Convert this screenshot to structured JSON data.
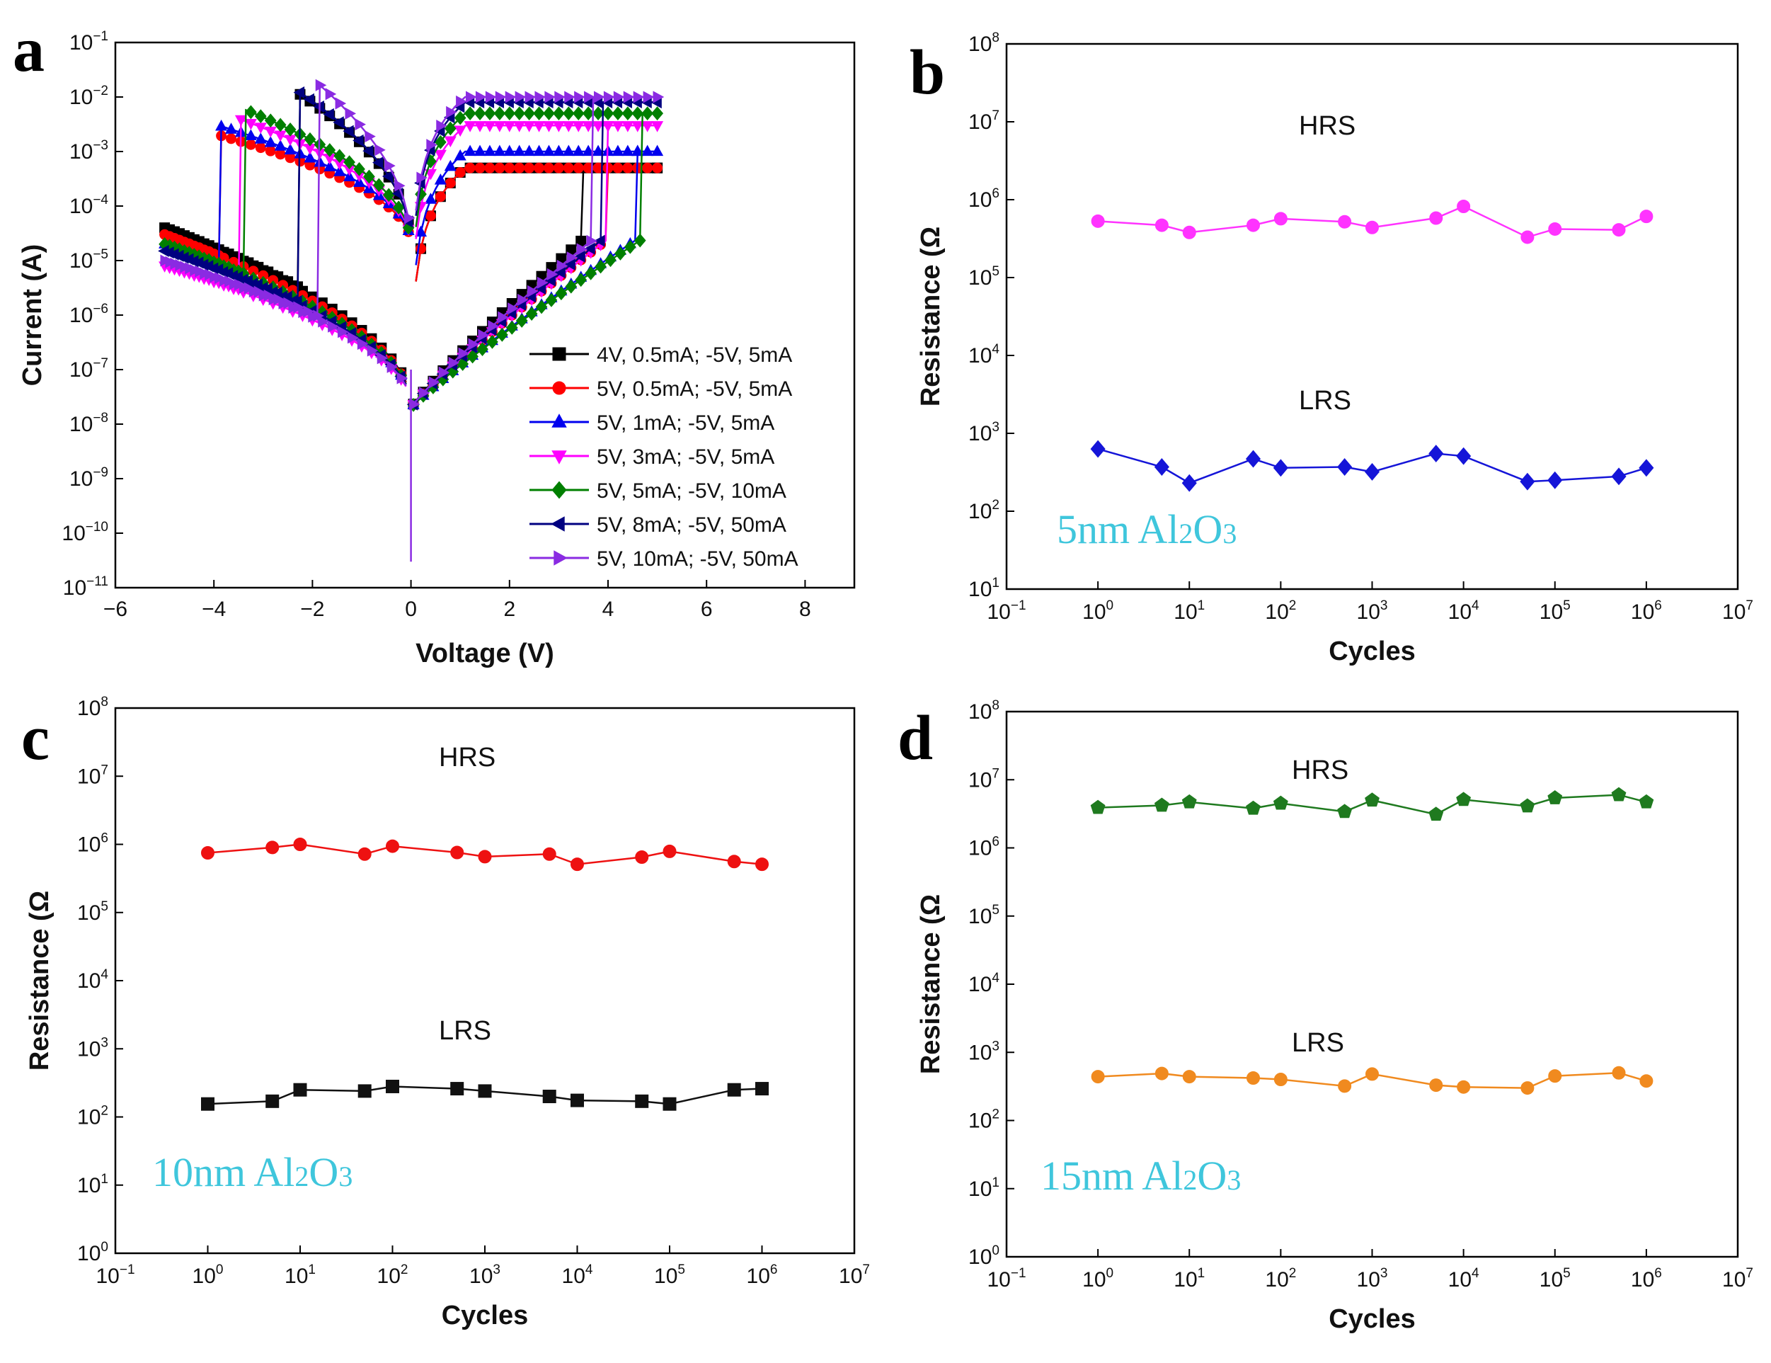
{
  "chart_data": [
    {
      "panel": "a",
      "type": "line",
      "xlabel": "Voltage (V)",
      "ylabel": "Current (A)",
      "xlim": [
        -6,
        9
      ],
      "xticks": [
        -6,
        -4,
        -2,
        0,
        2,
        4,
        6,
        8
      ],
      "ylim_exp": [
        -11,
        -1
      ],
      "yscale": "log",
      "legend_position": "bottom-right",
      "series": [
        {
          "name": "4V, 0.5mA; -5V, 5mA",
          "marker": "square",
          "color": "#000000",
          "set_v": 3.5,
          "comp": 0.0005,
          "reset_v": -2.3,
          "i_on": 0.012,
          "i_neg0": 4e-05
        },
        {
          "name": "5V, 0.5mA; -5V, 5mA",
          "marker": "circle",
          "color": "#ff0000",
          "set_v": 4.0,
          "comp": 0.0005,
          "reset_v": -3.9,
          "i_on": 0.002,
          "i_neg0": 3e-05
        },
        {
          "name": "5V, 1mA; -5V, 5mA",
          "marker": "triangle-up",
          "color": "#0000ee",
          "set_v": 4.6,
          "comp": 0.001,
          "reset_v": -3.9,
          "i_on": 0.003,
          "i_neg0": 2e-05
        },
        {
          "name": "5V, 3mA; -5V, 5mA",
          "marker": "triangle-down",
          "color": "#ff00ff",
          "set_v": 4.0,
          "comp": 0.003,
          "reset_v": -3.5,
          "i_on": 0.004,
          "i_neg0": 8e-06
        },
        {
          "name": "5V, 5mA; -5V, 10mA",
          "marker": "diamond",
          "color": "#007f00",
          "set_v": 4.7,
          "comp": 0.005,
          "reset_v": -3.4,
          "i_on": 0.006,
          "i_neg0": 2e-05
        },
        {
          "name": "5V, 8mA; -5V, 50mA",
          "marker": "triangle-left",
          "color": "#000080",
          "set_v": 3.9,
          "comp": 0.008,
          "reset_v": -2.3,
          "i_on": 0.013,
          "i_neg0": 1.5e-05
        },
        {
          "name": "5V, 10mA; -5V, 50mA",
          "marker": "triangle-right",
          "color": "#8a2be2",
          "set_v": 3.7,
          "comp": 0.01,
          "reset_v": -1.9,
          "i_on": 0.018,
          "i_neg0": 1e-05
        }
      ]
    },
    {
      "panel": "b",
      "type": "scatter",
      "label": "5nm Al2O3",
      "label_main": "5nm Al",
      "label_sub1": "2",
      "label_mid": "O",
      "label_sub2": "3",
      "xlabel": "Cycles",
      "ylabel": "Resistance (Ω",
      "xscale": "log",
      "xlim_exp": [
        -1,
        7
      ],
      "yscale": "log",
      "ylim_exp": [
        1,
        8
      ],
      "x": [
        1,
        5,
        10,
        50,
        100,
        500,
        1000,
        5000,
        10000,
        50000,
        100000,
        500000,
        1000000
      ],
      "series": [
        {
          "name": "HRS",
          "color": "#ff33ff",
          "marker": "circle",
          "values": [
            530000,
            470000,
            380000,
            470000,
            570000,
            520000,
            440000,
            580000,
            820000,
            330000,
            420000,
            410000,
            610000
          ]
        },
        {
          "name": "LRS",
          "color": "#1515d8",
          "marker": "diamond",
          "values": [
            630,
            370,
            230,
            470,
            360,
            370,
            320,
            550,
            510,
            240,
            250,
            280,
            360
          ]
        }
      ]
    },
    {
      "panel": "c",
      "type": "scatter",
      "label": "10nm Al2O3",
      "label_main": "10nm Al",
      "label_sub1": "2",
      "label_mid": "O",
      "label_sub2": "3",
      "xlabel": "Cycles",
      "ylabel": "Resistance (Ω",
      "xscale": "log",
      "xlim_exp": [
        -1,
        7
      ],
      "yscale": "log",
      "ylim_exp": [
        0,
        8
      ],
      "x": [
        1,
        5,
        10,
        50,
        100,
        500,
        1000,
        5000,
        10000,
        50000,
        100000,
        500000,
        1000000
      ],
      "series": [
        {
          "name": "HRS",
          "color": "#ee1111",
          "marker": "circle",
          "values": [
            750000,
            900000,
            1000000,
            720000,
            940000,
            760000,
            660000,
            720000,
            510000,
            650000,
            790000,
            560000,
            510000
          ]
        },
        {
          "name": "LRS",
          "color": "#111111",
          "marker": "square",
          "values": [
            155,
            170,
            250,
            240,
            280,
            260,
            240,
            200,
            175,
            170,
            155,
            250,
            260
          ]
        }
      ]
    },
    {
      "panel": "d",
      "type": "scatter",
      "label": "15nm Al2O3",
      "label_main": "15nm Al",
      "label_sub1": "2",
      "label_mid": "O",
      "label_sub2": "3",
      "xlabel": "Cycles",
      "ylabel": "Resistance (Ω",
      "xscale": "log",
      "xlim_exp": [
        -1,
        7
      ],
      "yscale": "log",
      "ylim_exp": [
        0,
        8
      ],
      "x": [
        1,
        5,
        10,
        50,
        100,
        500,
        1000,
        5000,
        10000,
        50000,
        100000,
        500000,
        1000000
      ],
      "series": [
        {
          "name": "HRS",
          "color": "#1f7a1f",
          "marker": "pentagon",
          "values": [
            3900000,
            4200000,
            4700000,
            3800000,
            4500000,
            3400000,
            5000000,
            3100000,
            5100000,
            4100000,
            5400000,
            6000000,
            4700000
          ]
        },
        {
          "name": "LRS",
          "color": "#f08a1f",
          "marker": "circle",
          "values": [
            440,
            490,
            440,
            420,
            400,
            320,
            480,
            330,
            310,
            300,
            450,
            500,
            380
          ]
        }
      ]
    }
  ]
}
